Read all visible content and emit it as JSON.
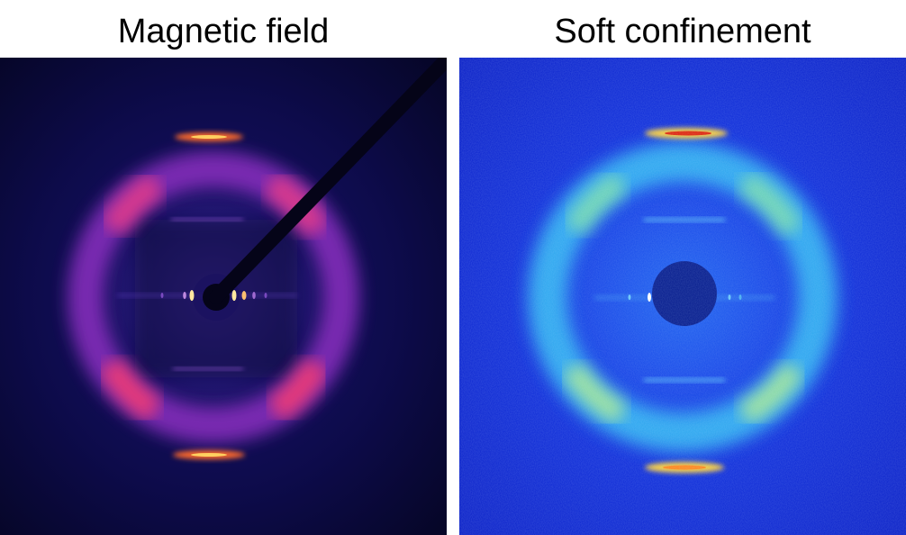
{
  "figure": {
    "panels": [
      {
        "title": "Magnetic field",
        "colormap": "fire",
        "background": "#0a0838",
        "ring_color": "#b43ad0",
        "hot_color": "#ff9a3a"
      },
      {
        "title": "Soft confinement",
        "colormap": "jet",
        "background": "#1530e0",
        "ring_color": "#3fc6f5",
        "hot_color": "#ffd23a"
      }
    ]
  }
}
